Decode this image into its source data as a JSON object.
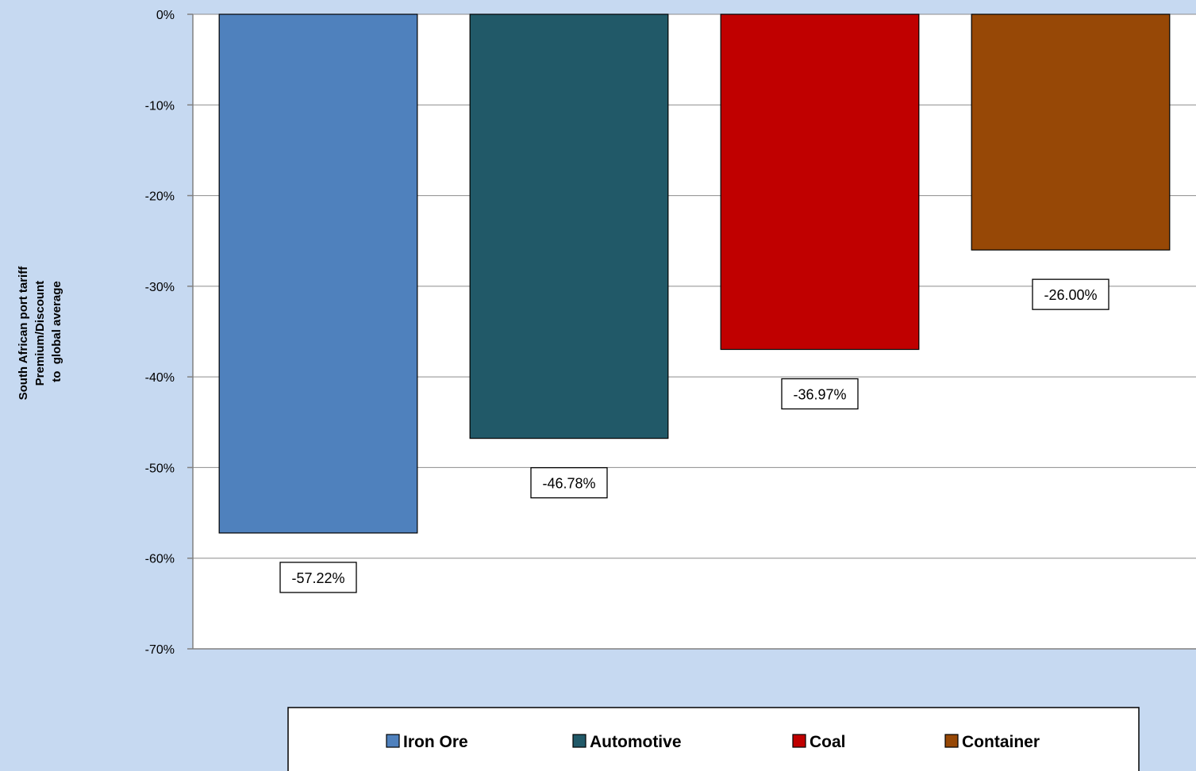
{
  "chart_data": {
    "type": "bar",
    "categories": [
      "Iron Ore",
      "Automotive",
      "Coal",
      "Container"
    ],
    "values": [
      -57.22,
      -46.78,
      -36.97,
      -26.0
    ],
    "data_labels": [
      "-57.22%",
      "-46.78%",
      "-36.97%",
      "-26.00%"
    ],
    "ylabel": [
      "South African port tariff",
      "Premium/Discount",
      "to  global average"
    ],
    "ylim": [
      -70,
      0
    ],
    "yticks": [
      0,
      -10,
      -20,
      -30,
      -40,
      -50,
      -60,
      -70
    ],
    "ytick_labels": [
      "0%",
      "-10%",
      "-20%",
      "-30%",
      "-40%",
      "-50%",
      "-60%",
      "-70%"
    ],
    "grid": true,
    "legend": {
      "placement": "bottom",
      "entries": [
        "Iron Ore",
        "Automotive",
        "Coal",
        "Container"
      ]
    },
    "colors": [
      "#4f81bd",
      "#215968",
      "#c00000",
      "#974806"
    ]
  }
}
